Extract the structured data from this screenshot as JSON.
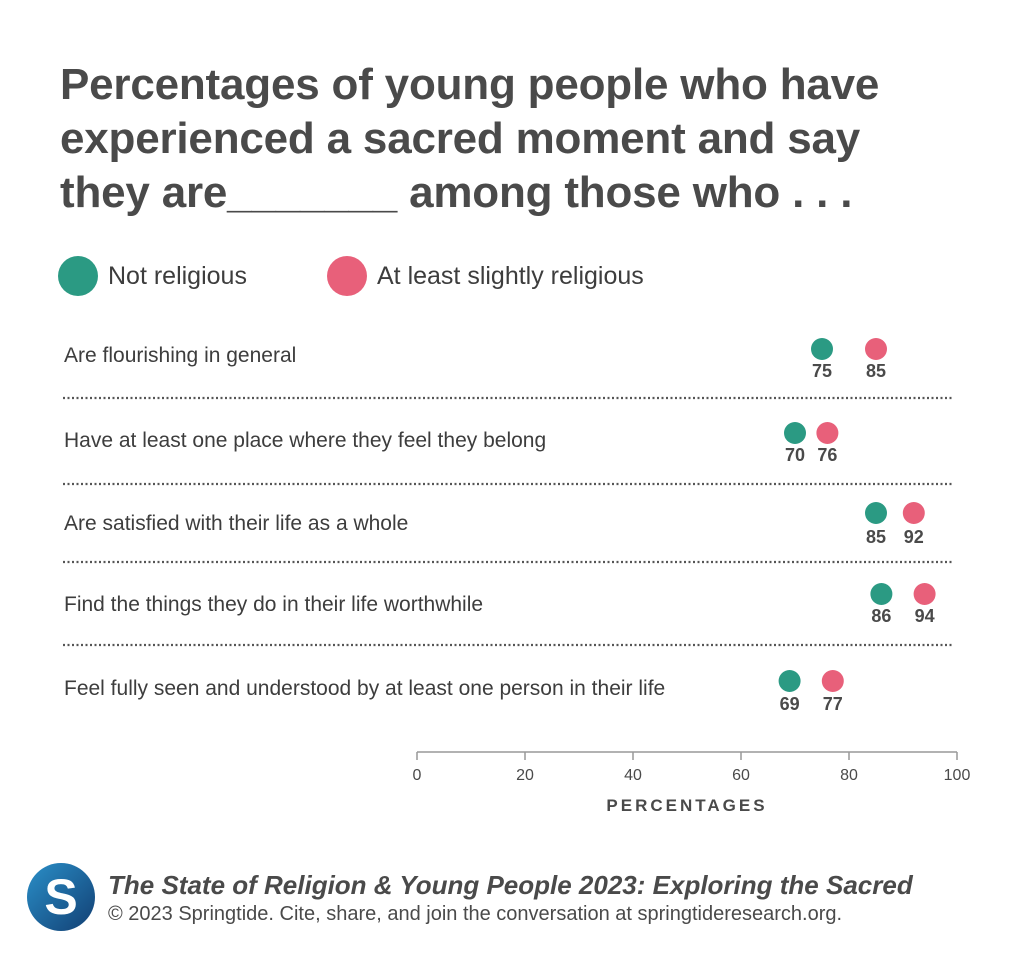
{
  "title_lines": [
    "Percentages of young people who have",
    "experienced a sacred moment and say",
    "they are_______ among those who . . ."
  ],
  "colors": {
    "not_religious": "#2b9a83",
    "religious": "#e8607a",
    "separator": "#555555",
    "axis": "#999999",
    "logo_blue": "#1d6fa8"
  },
  "chart_data": {
    "type": "dot",
    "title": "Percentages of young people who have experienced a sacred moment and say they are_______ among those who . . .",
    "xlabel": "PERCENTAGES",
    "ylabel": "",
    "xlim": [
      0,
      100
    ],
    "xticks": [
      0,
      20,
      40,
      60,
      80,
      100
    ],
    "legend_position": "top-left",
    "grid": false,
    "categories": [
      "Are flourishing in general",
      "Have at least one place where they feel they belong",
      "Are satisfied with their life as a whole",
      "Find the things they do in their life worthwhile",
      "Feel fully seen and understood by at least one person in their life"
    ],
    "series": [
      {
        "name": "Not religious",
        "color": "#2b9a83",
        "values": [
          75,
          70,
          85,
          86,
          69
        ]
      },
      {
        "name": "At least slightly religious",
        "color": "#e8607a",
        "values": [
          85,
          76,
          92,
          94,
          77
        ]
      }
    ]
  },
  "footer": {
    "logo_letter": "S",
    "title": "The State of Religion & Young People 2023: Exploring the Sacred",
    "copyright": "© 2023 Springtide. Cite, share, and join the conversation at springtideresearch.org."
  }
}
